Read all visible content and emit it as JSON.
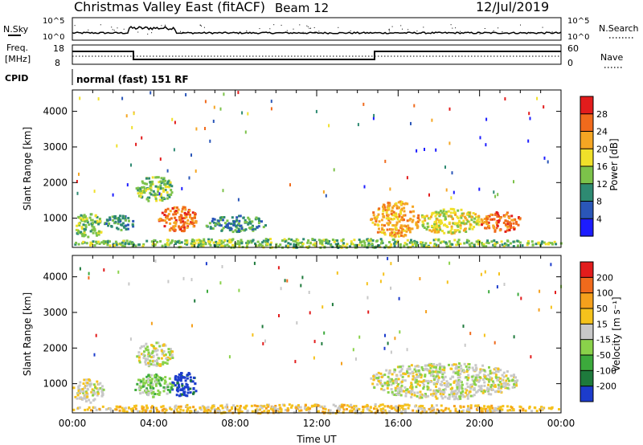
{
  "header": {
    "title": "Christmas Valley East (fitACF)",
    "beam": "Beam 12",
    "date": "12/Jul/2019"
  },
  "aux": {
    "nsky_label": "N.Sky",
    "nsky_ticks": [
      "10^5",
      "10^0"
    ],
    "nsearch_label": "N.Search",
    "nsearch_ticks": [
      "10^5",
      "10^0"
    ],
    "freq_label_line1": "Freq.",
    "freq_label_line2": "[MHz]",
    "freq_ticks": [
      "18",
      "8"
    ],
    "nave_label": "Nave",
    "nave_ticks": [
      "60",
      "0"
    ],
    "cpid_label": "CPID",
    "cpid_text": "normal (fast) 151 RF"
  },
  "chart_data": [
    {
      "type": "heatmap",
      "name": "power",
      "ylabel": "Slant Range [km]",
      "xlabel": "",
      "yticks": [
        "1000",
        "2000",
        "3000",
        "4000"
      ],
      "xlim": [
        0,
        24
      ],
      "ylim": [
        180,
        4600
      ],
      "colorbar_label": "Power [dB]",
      "colorbar_ticks": [
        "4",
        "8",
        "12",
        "16",
        "20",
        "24",
        "28"
      ],
      "colors": [
        "#1c1cff",
        "#2a56b8",
        "#2e8a72",
        "#7cc24a",
        "#f0e02a",
        "#f5a623",
        "#f06a1c",
        "#e21c1c"
      ],
      "regions": [
        {
          "t": [
            3.1,
            4.9
          ],
          "r": [
            1500,
            2200
          ],
          "level": 3
        },
        {
          "t": [
            4.2,
            6.1
          ],
          "r": [
            650,
            1350
          ],
          "level": 6
        },
        {
          "t": [
            0.0,
            1.5
          ],
          "r": [
            500,
            1150
          ],
          "level": 3
        },
        {
          "t": [
            1.5,
            3.0
          ],
          "r": [
            650,
            1100
          ],
          "level": 2
        },
        {
          "t": [
            6.5,
            9.5
          ],
          "r": [
            650,
            1100
          ],
          "level": 2
        },
        {
          "t": [
            14.6,
            17.0
          ],
          "r": [
            500,
            1500
          ],
          "level": 5
        },
        {
          "t": [
            17.0,
            20.0
          ],
          "r": [
            600,
            1300
          ],
          "level": 4
        },
        {
          "t": [
            20.0,
            22.0
          ],
          "r": [
            650,
            1200
          ],
          "level": 6
        },
        {
          "t": [
            0.0,
            24.0
          ],
          "r": [
            200,
            450
          ],
          "level": 3
        }
      ]
    },
    {
      "type": "heatmap",
      "name": "velocity",
      "ylabel": "Slant Range [km]",
      "xlabel": "Time UT",
      "yticks": [
        "1000",
        "2000",
        "3000",
        "4000"
      ],
      "xticks": [
        "00:00",
        "04:00",
        "08:00",
        "12:00",
        "16:00",
        "20:00",
        "00:00"
      ],
      "xlim": [
        0,
        24
      ],
      "ylim": [
        180,
        4600
      ],
      "colorbar_label": "Velocity [m s⁻¹]",
      "colorbar_ticks": [
        "200",
        "100",
        "50",
        "15",
        "-15",
        "-50",
        "-100",
        "-200"
      ],
      "colors": [
        "#1c3ccc",
        "#1e7a3c",
        "#3caa3c",
        "#8ad24a",
        "#c8c8c8",
        "#f5c21c",
        "#f5a01c",
        "#f06a1c",
        "#e21c1c"
      ],
      "regions": [
        {
          "t": [
            3.1,
            4.9
          ],
          "r": [
            1500,
            2200
          ],
          "level": 4
        },
        {
          "t": [
            4.8,
            6.1
          ],
          "r": [
            650,
            1350
          ],
          "level": 0
        },
        {
          "t": [
            3.0,
            4.9
          ],
          "r": [
            650,
            1300
          ],
          "level": 3
        },
        {
          "t": [
            0.0,
            1.5
          ],
          "r": [
            500,
            1150
          ],
          "level": 4
        },
        {
          "t": [
            14.6,
            21.8
          ],
          "r": [
            600,
            1600
          ],
          "level": 4
        },
        {
          "t": [
            0.0,
            24.0
          ],
          "r": [
            200,
            450
          ],
          "level": 5
        }
      ]
    }
  ]
}
